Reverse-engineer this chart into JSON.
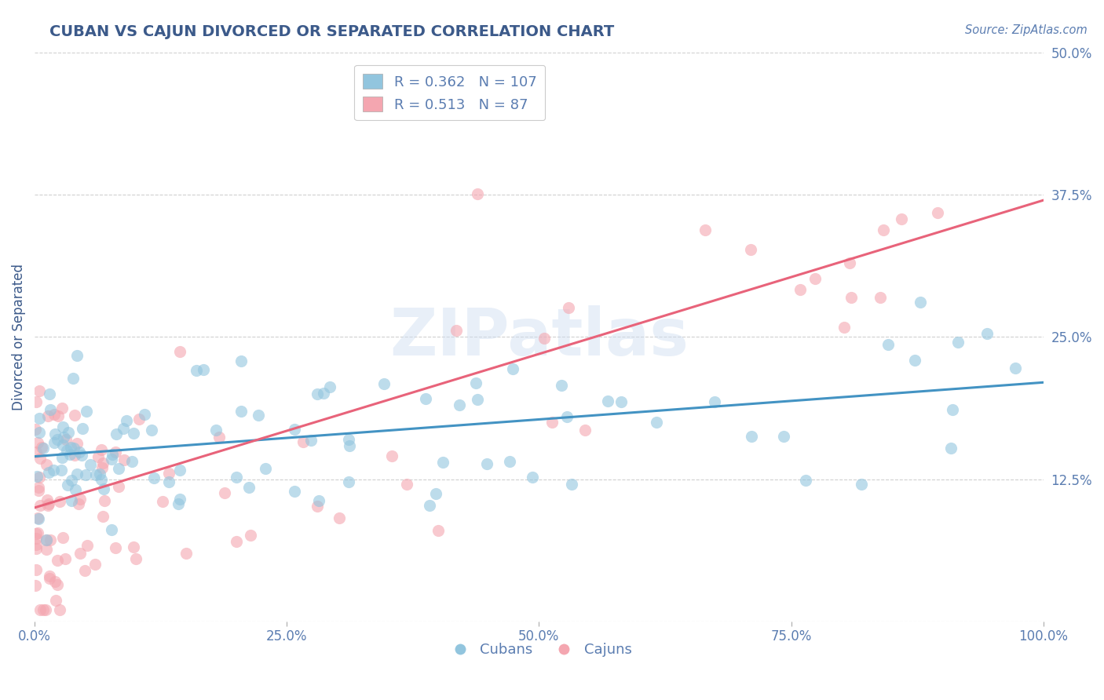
{
  "title": "CUBAN VS CAJUN DIVORCED OR SEPARATED CORRELATION CHART",
  "source_text": "Source: ZipAtlas.com",
  "ylabel": "Divorced or Separated",
  "xmin": 0.0,
  "xmax": 100.0,
  "ymin": 0.0,
  "ymax": 50.0,
  "yticks": [
    0.0,
    12.5,
    25.0,
    37.5,
    50.0
  ],
  "xticks": [
    0.0,
    25.0,
    50.0,
    75.0,
    100.0
  ],
  "xtick_labels": [
    "0.0%",
    "25.0%",
    "50.0%",
    "75.0%",
    "100.0%"
  ],
  "ytick_labels": [
    "",
    "12.5%",
    "25.0%",
    "37.5%",
    "50.0%"
  ],
  "legend_cubans_r": "0.362",
  "legend_cubans_n": "107",
  "legend_cajuns_r": "0.513",
  "legend_cajuns_n": "87",
  "legend_labels": [
    "Cubans",
    "Cajuns"
  ],
  "blue_color": "#92c5de",
  "pink_color": "#f4a6b0",
  "blue_line_color": "#4393c3",
  "pink_line_color": "#e8637a",
  "title_color": "#3c5a8a",
  "axis_label_color": "#3c5a8a",
  "tick_color": "#5b7db1",
  "watermark": "ZIPatlas",
  "background_color": "#ffffff",
  "grid_color": "#d0d0d0",
  "blue_intercept": 14.5,
  "blue_slope": 0.065,
  "pink_intercept": 10.0,
  "pink_slope": 0.27
}
